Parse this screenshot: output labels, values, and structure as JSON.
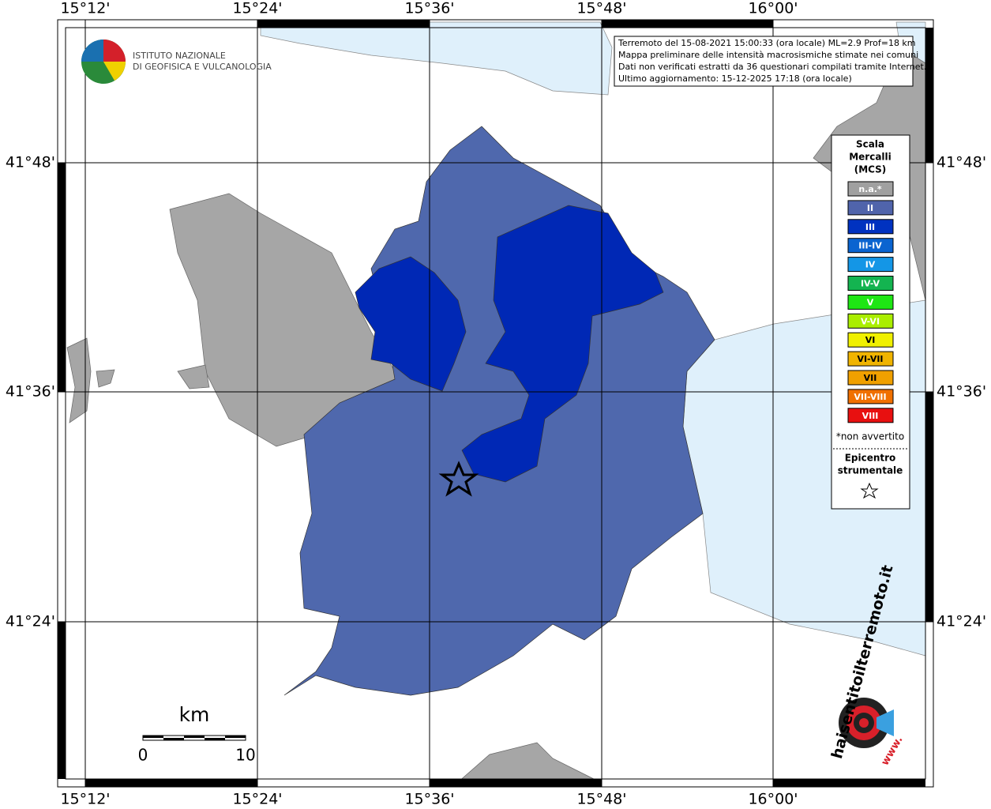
{
  "map": {
    "lon_labels": [
      "15°12'",
      "15°24'",
      "15°36'",
      "15°48'",
      "16°00'"
    ],
    "lat_labels": [
      "41°48'",
      "41°36'",
      "41°24'"
    ],
    "institute": [
      "ISTITUTO NAZIONALE",
      "DI GEOFISICA E VULCANOLOGIA"
    ],
    "info": [
      "Terremoto del 15-08-2021 15:00:33 (ora locale) ML=2.9 Prof=18 km",
      "Mappa preliminare delle intensità macrosismiche stimate nei comuni",
      "Dati non verificati estratti da 36 questionari compilati tramite Internet.",
      "Ultimo aggiornamento: 15-12-2025 17:18 (ora locale)"
    ],
    "legend": {
      "title": [
        "Scala",
        "Mercalli",
        "(MCS)"
      ],
      "items": [
        {
          "label": "n.a.*",
          "color": "#a0a0a0"
        },
        {
          "label": "II",
          "color": "#5064ab"
        },
        {
          "label": "III",
          "color": "#0032c0"
        },
        {
          "label": "III-IV",
          "color": "#0a64d0"
        },
        {
          "label": "IV",
          "color": "#1496e6"
        },
        {
          "label": "IV-V",
          "color": "#14b450"
        },
        {
          "label": "V",
          "color": "#1ee614"
        },
        {
          "label": "V-VI",
          "color": "#aaee00"
        },
        {
          "label": "VI",
          "color": "#f0f000"
        },
        {
          "label": "VI-VII",
          "color": "#f0b400"
        },
        {
          "label": "VII",
          "color": "#f0a000"
        },
        {
          "label": "VII-VIII",
          "color": "#f07000"
        },
        {
          "label": "VIII",
          "color": "#e81010"
        }
      ],
      "note": "*non avvertito",
      "epicentre": [
        "Epicentro",
        "strumentale"
      ]
    },
    "scale": {
      "unit": "km",
      "start": "0",
      "end": "10"
    },
    "site": {
      "name": "haisentitoilterremoto.it",
      "prefix": "www."
    }
  }
}
